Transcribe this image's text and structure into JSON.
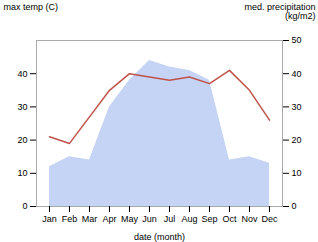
{
  "chart_data": {
    "type": "line",
    "xlabel": "date (month)",
    "ylabel": "max temp (C)",
    "y2label": "med. precipitation\n(kg/m2)",
    "categories": [
      "Jan",
      "Feb",
      "Mar",
      "Apr",
      "May",
      "Jun",
      "Jul",
      "Aug",
      "Sep",
      "Oct",
      "Nov",
      "Dec"
    ],
    "series": [
      {
        "type": "area",
        "axis": "y2",
        "color": "#c5d4f5",
        "values": [
          12,
          15,
          14,
          30,
          38,
          44,
          42,
          41,
          38,
          14,
          15,
          13
        ]
      },
      {
        "type": "line",
        "color": "#c0524a",
        "values": [
          21,
          19,
          27,
          35,
          40,
          39,
          38,
          39,
          37,
          41,
          35,
          26
        ]
      }
    ],
    "ylim": [
      0,
      50
    ],
    "yticks": [
      0,
      10,
      20,
      30,
      40
    ],
    "y2lim": [
      0,
      50
    ],
    "y2ticks": [
      0,
      10,
      20,
      30,
      40,
      50
    ]
  }
}
